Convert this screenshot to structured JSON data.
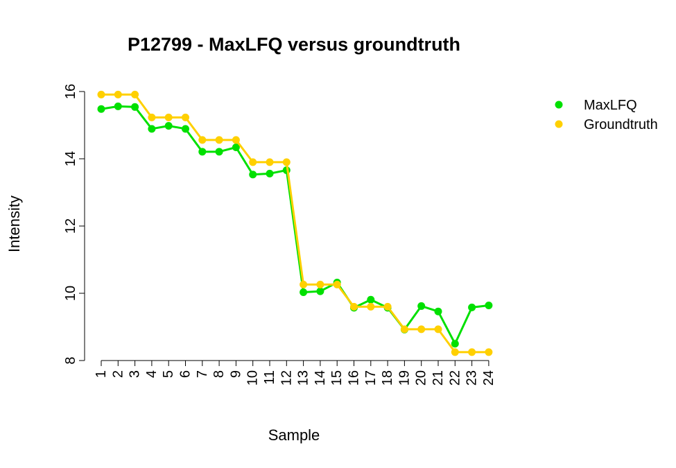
{
  "chart_data": {
    "type": "line",
    "title": "P12799 - MaxLFQ versus groundtruth",
    "xlabel": "Sample",
    "ylabel": "Intensity",
    "ylim": [
      8,
      16
    ],
    "yticks": [
      8,
      10,
      12,
      14,
      16
    ],
    "categories": [
      "1",
      "2",
      "3",
      "4",
      "5",
      "6",
      "7",
      "8",
      "9",
      "10",
      "11",
      "12",
      "13",
      "14",
      "15",
      "16",
      "17",
      "18",
      "19",
      "20",
      "21",
      "22",
      "23",
      "24"
    ],
    "grid": false,
    "legend_position": "top-right",
    "series": [
      {
        "name": "MaxLFQ",
        "color": "#00E000",
        "values": [
          15.48,
          15.56,
          15.54,
          14.89,
          14.98,
          14.89,
          14.21,
          14.21,
          14.34,
          13.53,
          13.56,
          13.66,
          10.03,
          10.06,
          10.32,
          9.57,
          9.81,
          9.57,
          8.92,
          9.62,
          9.46,
          8.5,
          9.58,
          9.64
        ]
      },
      {
        "name": "Groundtruth",
        "color": "#FFD000",
        "values": [
          15.91,
          15.91,
          15.91,
          15.23,
          15.23,
          15.23,
          14.56,
          14.56,
          14.56,
          13.9,
          13.9,
          13.9,
          10.26,
          10.26,
          10.26,
          9.6,
          9.6,
          9.6,
          8.93,
          8.93,
          8.93,
          8.25,
          8.25,
          8.25
        ]
      }
    ]
  }
}
